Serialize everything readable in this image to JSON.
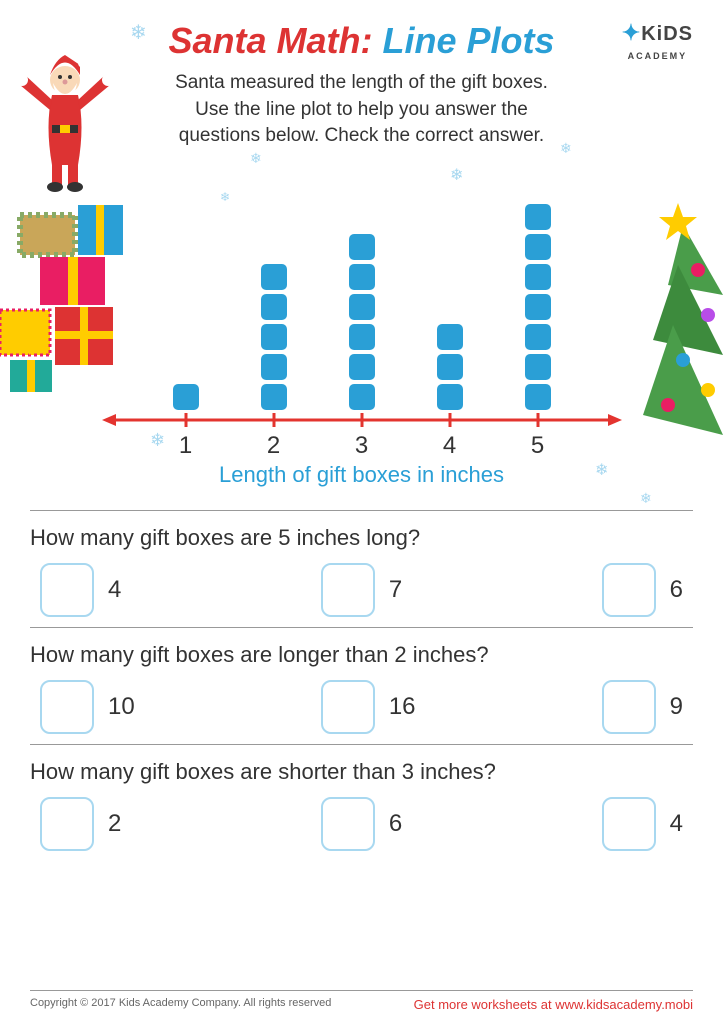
{
  "title": {
    "part1": "Santa Math:",
    "part2": "Line Plots"
  },
  "logo": {
    "main": "KiDS",
    "sub": "ACADEMY"
  },
  "instructions": "Santa measured the length of the gift boxes. Use the line plot to help you answer the questions below. Check the correct answer.",
  "chart": {
    "type": "line-plot",
    "categories": [
      "1",
      "2",
      "3",
      "4",
      "5"
    ],
    "counts": [
      1,
      5,
      6,
      3,
      7
    ],
    "square_color": "#2a9fd6",
    "line_color": "#e3342f",
    "axis_label": "Length of gift boxes in inches",
    "axis_label_color": "#2a9fd6",
    "tick_fontsize": 24
  },
  "questions": [
    {
      "text": "How many gift boxes are 5 inches long?",
      "options": [
        "4",
        "7",
        "6"
      ]
    },
    {
      "text": "How many gift boxes are longer than 2 inches?",
      "options": [
        "10",
        "16",
        "9"
      ]
    },
    {
      "text": "How many gift boxes are shorter than 3 inches?",
      "options": [
        "2",
        "6",
        "4"
      ]
    }
  ],
  "footer": {
    "copyright": "Copyright © 2017 Kids Academy Company. All rights reserved",
    "link": "Get more worksheets at www.kidsacademy.mobi"
  },
  "colors": {
    "red": "#d33",
    "blue": "#2a9fd6",
    "checkbox_border": "#a8d8f0"
  }
}
